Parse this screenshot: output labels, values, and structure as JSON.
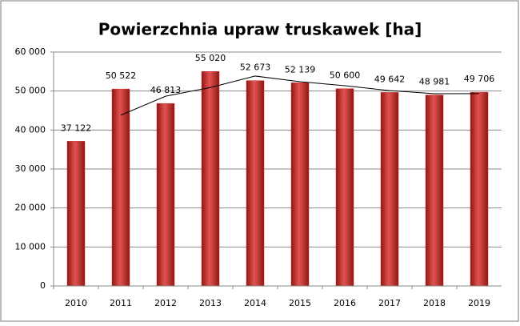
{
  "chart_data": {
    "type": "bar",
    "title": "Powierzchnia upraw truskawek [ha]",
    "categories": [
      "2010",
      "2011",
      "2012",
      "2013",
      "2014",
      "2015",
      "2016",
      "2017",
      "2018",
      "2019"
    ],
    "series": [
      {
        "type": "bar",
        "color": "#c8312e",
        "values": [
          37122,
          50522,
          46813,
          55020,
          52673,
          52139,
          50600,
          49642,
          48981,
          49706
        ],
        "value_labels": [
          "37 122",
          "50 522",
          "46 813",
          "55 020",
          "52 673",
          "52 139",
          "50 600",
          "49 642",
          "48 981",
          "49 706"
        ]
      },
      {
        "type": "line",
        "color": "#000000",
        "values": [
          null,
          43822,
          48668,
          50917,
          53847,
          52406,
          51370,
          50121,
          49312,
          49344
        ]
      }
    ],
    "ylim": [
      0,
      60000
    ],
    "yticks": [
      0,
      {
        "value": 10000,
        "label": "10 000"
      },
      {
        "value": 20000,
        "label": "20 000"
      },
      {
        "value": 30000,
        "label": "30 000"
      },
      {
        "value": 40000,
        "label": "40 000"
      },
      {
        "value": 50000,
        "label": "50 000"
      },
      {
        "value": 60000,
        "label": "60 000"
      }
    ],
    "grid": true
  }
}
